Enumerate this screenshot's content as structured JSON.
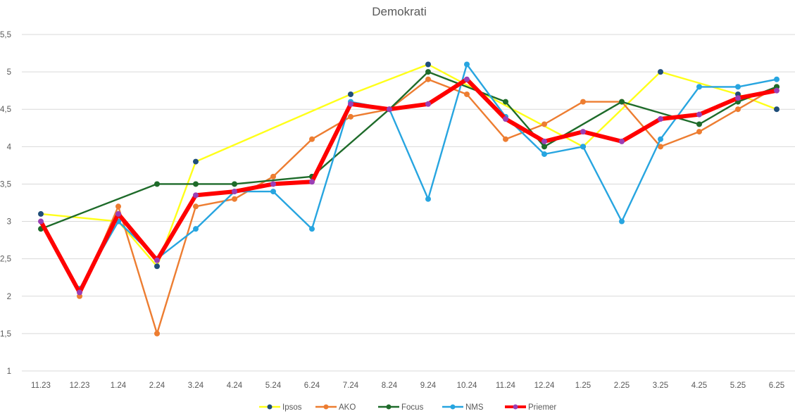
{
  "chart_data": {
    "type": "line",
    "title": "Demokrati",
    "xlabel": "",
    "ylabel": "",
    "ylim": [
      1,
      5.5
    ],
    "yticks": [
      "1",
      "1,5",
      "2",
      "2,5",
      "3",
      "3,5",
      "4",
      "4,5",
      "5",
      "5,5"
    ],
    "ytick_values": [
      1,
      1.5,
      2,
      2.5,
      3,
      3.5,
      4,
      4.5,
      5,
      5.5
    ],
    "grid": true,
    "legend_position": "bottom",
    "categories": [
      "11.23",
      "12.23",
      "1.24",
      "2.24",
      "3.24",
      "4.24",
      "5.24",
      "6.24",
      "7.24",
      "8.24",
      "9.24",
      "10.24",
      "11.24",
      "12.24",
      "1.25",
      "2.25",
      "3.25",
      "4.25",
      "5.25",
      "6.25"
    ],
    "series": [
      {
        "name": "Ipsos",
        "color": "#ffff1a",
        "marker_color": "#1f4e79",
        "values": [
          3.1,
          null,
          3.0,
          2.4,
          3.8,
          null,
          null,
          null,
          4.7,
          null,
          5.1,
          null,
          null,
          null,
          4.0,
          null,
          5.0,
          null,
          4.7,
          4.5
        ]
      },
      {
        "name": "AKO",
        "color": "#ed7d31",
        "marker_color": "#ed7d31",
        "values": [
          null,
          2.0,
          3.2,
          1.5,
          3.2,
          3.3,
          3.6,
          4.1,
          4.4,
          4.5,
          4.9,
          4.7,
          4.1,
          4.3,
          4.6,
          4.6,
          4.0,
          4.2,
          4.5,
          4.8
        ]
      },
      {
        "name": "Focus",
        "color": "#1e6b2a",
        "marker_color": "#1e6b2a",
        "values": [
          2.9,
          null,
          null,
          3.5,
          3.5,
          3.5,
          null,
          3.6,
          null,
          4.5,
          5.0,
          null,
          4.6,
          4.0,
          null,
          4.6,
          null,
          4.3,
          4.6,
          4.8
        ]
      },
      {
        "name": "NMS",
        "color": "#27a5e0",
        "marker_color": "#27a5e0",
        "values": [
          null,
          2.1,
          3.0,
          2.5,
          2.9,
          3.4,
          3.4,
          2.9,
          4.6,
          4.5,
          3.3,
          5.1,
          4.4,
          3.9,
          4.0,
          3.0,
          4.1,
          4.8,
          4.8,
          4.9
        ]
      },
      {
        "name": "Priemer",
        "color": "#ff0000",
        "marker_color": "#9b3fb5",
        "values": [
          3.0,
          2.05,
          3.1,
          2.48,
          3.35,
          3.4,
          3.5,
          3.53,
          4.57,
          4.5,
          4.57,
          4.9,
          4.37,
          4.07,
          4.2,
          4.07,
          4.37,
          4.43,
          4.65,
          4.75
        ]
      }
    ]
  }
}
